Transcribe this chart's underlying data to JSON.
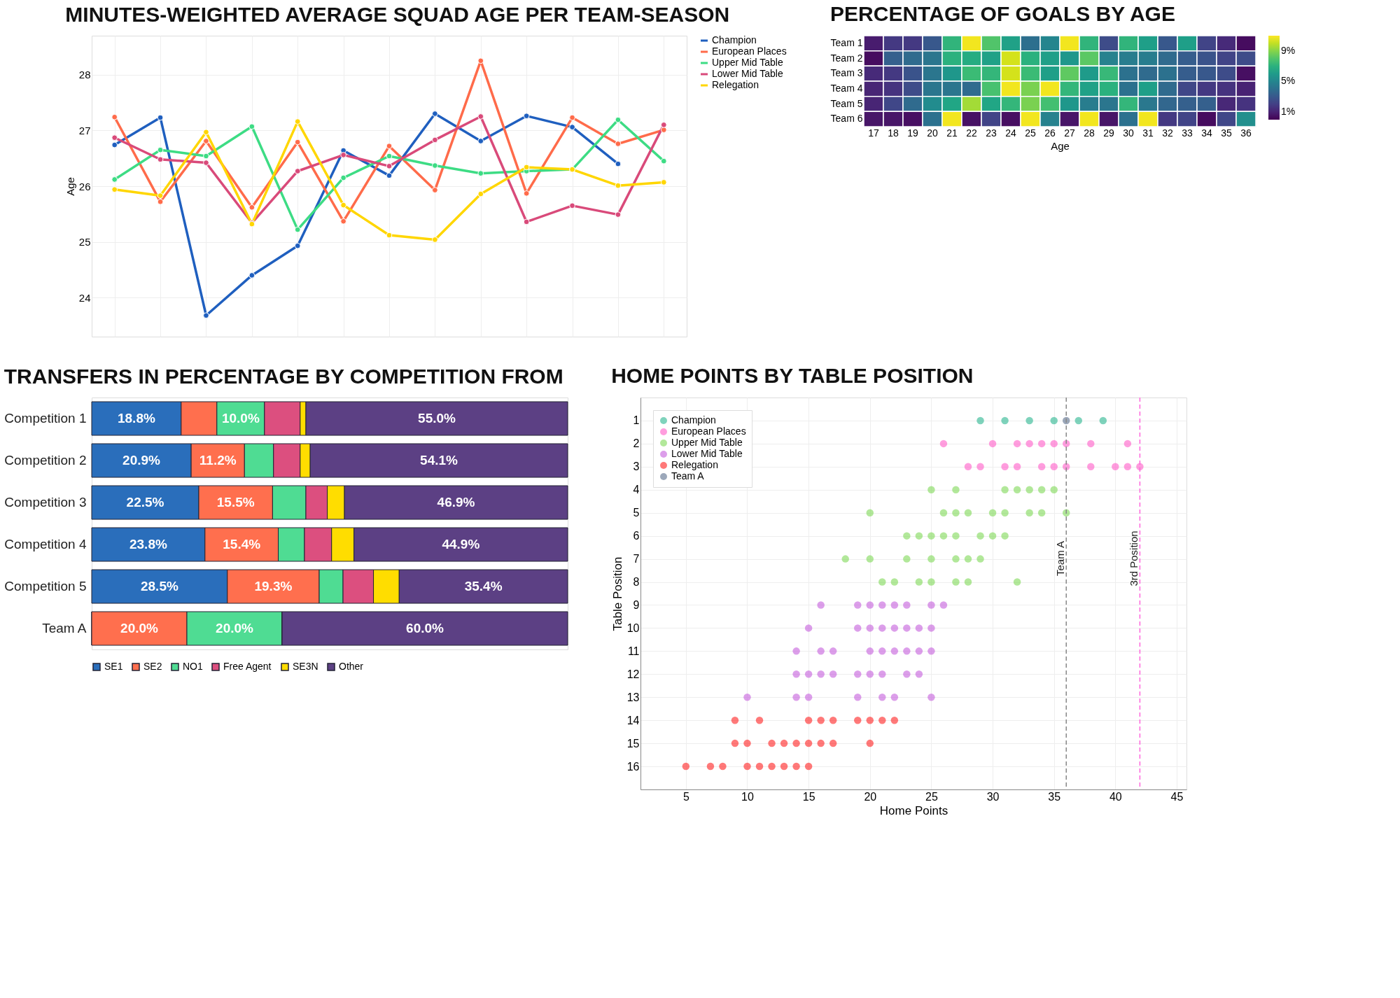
{
  "chart_data": [
    {
      "type": "line",
      "title": "MINUTES-WEIGHTED AVERAGE SQUAD AGE PER TEAM-SEASON",
      "ylabel": "Age",
      "categories": [
        null,
        null,
        null,
        null,
        null,
        null,
        null,
        null,
        null,
        null,
        null,
        null,
        null
      ],
      "series": [
        {
          "name": "Champion",
          "color": "#1f5fbf",
          "values": [
            26.74,
            27.23,
            23.68,
            24.4,
            24.93,
            26.64,
            26.19,
            27.3,
            26.81,
            27.26,
            27.06,
            26.4,
            null
          ]
        },
        {
          "name": "European Places",
          "color": "#ff6b4a",
          "values": [
            27.24,
            25.72,
            26.81,
            25.62,
            26.79,
            25.37,
            26.72,
            25.93,
            28.25,
            25.87,
            27.23,
            26.76,
            27.01
          ]
        },
        {
          "name": "Upper Mid Table",
          "color": "#3ddc84",
          "values": [
            26.12,
            26.65,
            26.54,
            27.07,
            25.22,
            26.15,
            26.54,
            26.37,
            26.23,
            26.27,
            26.3,
            27.19,
            26.45
          ]
        },
        {
          "name": "Lower Mid Table",
          "color": "#d94a7a",
          "values": [
            26.87,
            26.48,
            26.42,
            25.34,
            26.27,
            26.56,
            26.36,
            26.83,
            27.25,
            25.36,
            25.65,
            25.49,
            27.1
          ]
        },
        {
          "name": "Relegation",
          "color": "#ffd600",
          "values": [
            25.94,
            25.83,
            26.97,
            25.32,
            27.16,
            25.66,
            25.12,
            25.04,
            25.86,
            26.34,
            26.3,
            26.01,
            26.07
          ]
        }
      ],
      "ylim": [
        23.3,
        28.7
      ],
      "yticks": [
        24,
        25,
        26,
        27,
        28
      ],
      "grid": true,
      "legend": "right",
      "marker": "circle",
      "line_style": "solid",
      "tick_labels": "y"
    },
    {
      "type": "heatmap",
      "title": "PERCENTAGE OF GOALS BY AGE",
      "xlabel": "Age",
      "categories": [
        "17",
        "18",
        "19",
        "20",
        "21",
        "22",
        "23",
        "24",
        "25",
        "26",
        "27",
        "28",
        "29",
        "30",
        "31",
        "32",
        "33",
        "34",
        "35",
        "36"
      ],
      "y_categories": [
        "Team 1",
        "Team 2",
        "Team 3",
        "Team 4",
        "Team 5",
        "Team 6"
      ],
      "cells": [
        [
          0.8,
          1.8,
          1.8,
          3.0,
          7.2,
          10.8,
          8.0,
          6.3,
          4.0,
          5.0,
          10.8,
          7.2,
          2.5,
          7.2,
          6.2,
          3.0,
          6.2,
          2.2,
          1.3,
          0.3
        ],
        [
          0.3,
          3.3,
          3.8,
          4.3,
          7.0,
          6.8,
          6.3,
          10.3,
          7.0,
          6.2,
          5.8,
          8.2,
          4.8,
          4.6,
          4.6,
          3.8,
          3.2,
          2.8,
          2.2,
          2.5
        ],
        [
          1.3,
          1.8,
          2.8,
          4.3,
          5.8,
          7.5,
          7.3,
          10.3,
          7.5,
          6.2,
          8.3,
          6.0,
          7.4,
          4.1,
          3.8,
          4.1,
          3.2,
          3.0,
          2.5,
          0.4
        ],
        [
          1.1,
          1.6,
          2.5,
          4.3,
          4.3,
          3.8,
          7.8,
          10.8,
          8.8,
          10.8,
          7.3,
          6.3,
          7.0,
          4.1,
          6.2,
          3.8,
          2.3,
          1.8,
          1.6,
          1.0
        ],
        [
          1.1,
          2.3,
          3.8,
          5.3,
          6.5,
          9.5,
          6.5,
          7.3,
          8.8,
          7.7,
          5.8,
          4.6,
          4.3,
          7.3,
          4.4,
          3.6,
          3.3,
          3.3,
          1.2,
          1.6
        ],
        [
          0.6,
          0.6,
          0.4,
          4.1,
          10.8,
          0.5,
          2.2,
          0.4,
          10.8,
          4.8,
          0.6,
          10.8,
          0.6,
          4.1,
          10.8,
          1.8,
          2.2,
          0.3,
          2.3,
          5.4
        ]
      ],
      "clim": [
        0,
        11
      ],
      "cticks": [
        {
          "value": 1,
          "label": "1%"
        },
        {
          "value": 5,
          "label": "5%"
        },
        {
          "value": 9,
          "label": "9%"
        }
      ]
    },
    {
      "type": "bar",
      "title": "TRANSFERS IN PERCENTAGE BY COMPETITION FROM",
      "orientation": "horizontal",
      "stacked": true,
      "categories": [
        "Competition 1",
        "Competition 2",
        "Competition 3",
        "Competition 4",
        "Competition 5",
        "Team A"
      ],
      "series": [
        {
          "name": "SE1",
          "color": "#2a6ebb",
          "values": [
            18.8,
            20.9,
            22.5,
            23.8,
            28.5,
            0
          ],
          "value_labels": [
            "18.8%",
            "20.9%",
            "22.5%",
            "23.8%",
            "28.5%",
            null
          ]
        },
        {
          "name": "SE2",
          "color": "#ff6f4e",
          "values": [
            7.5,
            11.2,
            15.5,
            15.4,
            19.3,
            20.0
          ],
          "value_labels": [
            null,
            "11.2%",
            "15.5%",
            "15.4%",
            "19.3%",
            "20.0%"
          ]
        },
        {
          "name": "NO1",
          "color": "#4fdc93",
          "values": [
            10.0,
            6.1,
            7.0,
            5.5,
            5.0,
            20.0
          ],
          "value_labels": [
            "10.0%",
            null,
            null,
            null,
            null,
            "20.0%"
          ]
        },
        {
          "name": "Free Agent",
          "color": "#dc4f7f",
          "values": [
            7.5,
            5.6,
            4.5,
            5.7,
            6.4,
            0
          ]
        },
        {
          "name": "SE3N",
          "color": "#ffdd00",
          "values": [
            1.2,
            2.1,
            3.6,
            4.7,
            5.4,
            0
          ]
        },
        {
          "name": "Other",
          "color": "#5c4084",
          "values": [
            55.0,
            54.1,
            46.9,
            44.9,
            35.4,
            60.0
          ],
          "value_labels": [
            "55.0%",
            "54.1%",
            "46.9%",
            "44.9%",
            "35.4%",
            "60.0%"
          ]
        }
      ],
      "xlim": [
        0,
        100
      ],
      "legend": "bottom",
      "tick_labels": "y"
    },
    {
      "type": "scatter",
      "title": "HOME POINTS BY TABLE POSITION",
      "xlabel": "Home Points",
      "ylabel": "Table Position",
      "series": [
        {
          "name": "Champion",
          "color": "#2ab58f",
          "x": [
            29,
            31,
            33,
            35,
            37,
            39
          ],
          "values": [
            1,
            1,
            1,
            1,
            1,
            1
          ]
        },
        {
          "name": "European Places",
          "color": "#ff5cc8",
          "x": [
            26,
            30,
            32,
            33,
            34,
            35,
            36,
            38,
            41,
            28,
            29,
            31,
            32,
            34,
            35,
            36,
            38,
            40,
            41,
            42
          ],
          "values": [
            2,
            2,
            2,
            2,
            2,
            2,
            2,
            2,
            2,
            3,
            3,
            3,
            3,
            3,
            3,
            3,
            3,
            3,
            3,
            3
          ]
        },
        {
          "name": "Upper Mid Table",
          "color": "#7ed957",
          "x": [
            25,
            27,
            31,
            32,
            33,
            34,
            35,
            20,
            26,
            27,
            28,
            30,
            31,
            33,
            34,
            36,
            23,
            24,
            25,
            26,
            27,
            29,
            30,
            31,
            18,
            20,
            23,
            25,
            27,
            28,
            29,
            21,
            22,
            24,
            25,
            27,
            28,
            32
          ],
          "values": [
            4,
            4,
            4,
            4,
            4,
            4,
            4,
            5,
            5,
            5,
            5,
            5,
            5,
            5,
            5,
            5,
            6,
            6,
            6,
            6,
            6,
            6,
            6,
            6,
            7,
            7,
            7,
            7,
            7,
            7,
            7,
            8,
            8,
            8,
            8,
            8,
            8,
            8
          ]
        },
        {
          "name": "Lower Mid Table",
          "color": "#c45ddc",
          "x": [
            16,
            19,
            20,
            21,
            22,
            23,
            25,
            26,
            15,
            19,
            20,
            21,
            22,
            23,
            24,
            25,
            14,
            16,
            17,
            20,
            21,
            22,
            23,
            24,
            25,
            14,
            15,
            16,
            17,
            19,
            20,
            21,
            23,
            24,
            10,
            14,
            15,
            19,
            21,
            22,
            25
          ],
          "values": [
            9,
            9,
            9,
            9,
            9,
            9,
            9,
            9,
            10,
            10,
            10,
            10,
            10,
            10,
            10,
            10,
            11,
            11,
            11,
            11,
            11,
            11,
            11,
            11,
            11,
            12,
            12,
            12,
            12,
            12,
            12,
            12,
            12,
            12,
            13,
            13,
            13,
            13,
            13,
            13,
            13
          ]
        },
        {
          "name": "Relegation",
          "color": "#ff2020",
          "x": [
            9,
            11,
            15,
            16,
            17,
            19,
            20,
            21,
            22,
            9,
            10,
            12,
            13,
            14,
            15,
            16,
            17,
            20,
            5,
            7,
            8,
            10,
            11,
            12,
            13,
            14,
            15
          ],
          "values": [
            14,
            14,
            14,
            14,
            14,
            14,
            14,
            14,
            14,
            15,
            15,
            15,
            15,
            15,
            15,
            15,
            15,
            15,
            16,
            16,
            16,
            16,
            16,
            16,
            16,
            16,
            16
          ]
        },
        {
          "name": "Team A",
          "color": "#5a6e8c",
          "x": [
            36
          ],
          "values": [
            1
          ]
        }
      ],
      "xlim": [
        1.3,
        45.8
      ],
      "xticks": [
        5,
        10,
        15,
        20,
        25,
        30,
        35,
        40,
        45
      ],
      "ylim": [
        17,
        0
      ],
      "yticks": [
        1,
        2,
        3,
        4,
        5,
        6,
        7,
        8,
        9,
        10,
        11,
        12,
        13,
        14,
        15,
        16
      ],
      "ref_lines": [
        {
          "axis": "x",
          "value": 36,
          "label": "Team A",
          "color": "#888888",
          "line_style": "dashed"
        },
        {
          "axis": "x",
          "value": 42,
          "label": "3rd Position",
          "color": "#ff66dd",
          "line_style": "dashed"
        }
      ],
      "grid": true,
      "legend": "top left",
      "marker": "circle"
    }
  ]
}
